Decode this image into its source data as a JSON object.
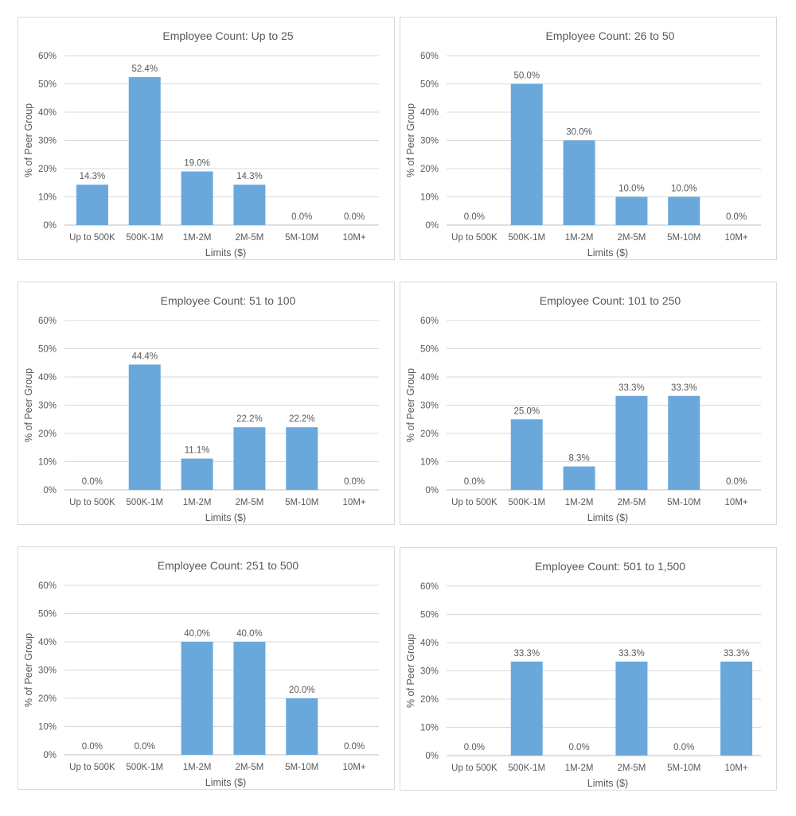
{
  "bar_color": "#6aa8dc",
  "chart_data": [
    {
      "type": "bar",
      "title": "Employee Count: Up to 25",
      "xlabel": "Limits ($)",
      "ylabel": "% of Peer Group",
      "categories": [
        "Up to 500K",
        "500K-1M",
        "1M-2M",
        "2M-5M",
        "5M-10M",
        "10M+"
      ],
      "values": [
        14.3,
        52.4,
        19.0,
        14.3,
        0.0,
        0.0
      ],
      "labels": [
        "14.3%",
        "52.4%",
        "19.0%",
        "14.3%",
        "0.0%",
        "0.0%"
      ],
      "ylim": [
        0,
        60
      ],
      "yticks": [
        "0%",
        "10%",
        "20%",
        "30%",
        "40%",
        "50%",
        "60%"
      ],
      "grid": true
    },
    {
      "type": "bar",
      "title": "Employee Count: 26 to 50",
      "xlabel": "Limits ($)",
      "ylabel": "% of Peer Group",
      "categories": [
        "Up to 500K",
        "500K-1M",
        "1M-2M",
        "2M-5M",
        "5M-10M",
        "10M+"
      ],
      "values": [
        0.0,
        50.0,
        30.0,
        10.0,
        10.0,
        0.0
      ],
      "labels": [
        "0.0%",
        "50.0%",
        "30.0%",
        "10.0%",
        "10.0%",
        "0.0%"
      ],
      "ylim": [
        0,
        60
      ],
      "yticks": [
        "0%",
        "10%",
        "20%",
        "30%",
        "40%",
        "50%",
        "60%"
      ],
      "grid": true
    },
    {
      "type": "bar",
      "title": "Employee Count: 51 to 100",
      "xlabel": "Limits ($)",
      "ylabel": "% of Peer Group",
      "categories": [
        "Up to 500K",
        "500K-1M",
        "1M-2M",
        "2M-5M",
        "5M-10M",
        "10M+"
      ],
      "values": [
        0.0,
        44.4,
        11.1,
        22.2,
        22.2,
        0.0
      ],
      "labels": [
        "0.0%",
        "44.4%",
        "11.1%",
        "22.2%",
        "22.2%",
        "0.0%"
      ],
      "ylim": [
        0,
        60
      ],
      "yticks": [
        "0%",
        "10%",
        "20%",
        "30%",
        "40%",
        "50%",
        "60%"
      ],
      "grid": true
    },
    {
      "type": "bar",
      "title": "Employee Count: 101 to 250",
      "xlabel": "Limits ($)",
      "ylabel": "% of Peer Group",
      "categories": [
        "Up to 500K",
        "500K-1M",
        "1M-2M",
        "2M-5M",
        "5M-10M",
        "10M+"
      ],
      "values": [
        0.0,
        25.0,
        8.3,
        33.3,
        33.3,
        0.0
      ],
      "labels": [
        "0.0%",
        "25.0%",
        "8.3%",
        "33.3%",
        "33.3%",
        "0.0%"
      ],
      "ylim": [
        0,
        60
      ],
      "yticks": [
        "0%",
        "10%",
        "20%",
        "30%",
        "40%",
        "50%",
        "60%"
      ],
      "grid": true
    },
    {
      "type": "bar",
      "title": "Employee Count: 251 to 500",
      "xlabel": "Limits ($)",
      "ylabel": "% of Peer Group",
      "categories": [
        "Up to 500K",
        "500K-1M",
        "1M-2M",
        "2M-5M",
        "5M-10M",
        "10M+"
      ],
      "values": [
        0.0,
        0.0,
        40.0,
        40.0,
        20.0,
        0.0
      ],
      "labels": [
        "0.0%",
        "0.0%",
        "40.0%",
        "40.0%",
        "20.0%",
        "0.0%"
      ],
      "ylim": [
        0,
        60
      ],
      "yticks": [
        "0%",
        "10%",
        "20%",
        "30%",
        "40%",
        "50%",
        "60%"
      ],
      "grid": true
    },
    {
      "type": "bar",
      "title": "Employee Count: 501 to 1,500",
      "xlabel": "Limits ($)",
      "ylabel": "% of Peer Group",
      "categories": [
        "Up to 500K",
        "500K-1M",
        "1M-2M",
        "2M-5M",
        "5M-10M",
        "10M+"
      ],
      "values": [
        0.0,
        33.3,
        0.0,
        33.3,
        0.0,
        33.3
      ],
      "labels": [
        "0.0%",
        "33.3%",
        "0.0%",
        "33.3%",
        "0.0%",
        "33.3%"
      ],
      "ylim": [
        0,
        60
      ],
      "yticks": [
        "0%",
        "10%",
        "20%",
        "30%",
        "40%",
        "50%",
        "60%"
      ],
      "grid": true
    }
  ]
}
